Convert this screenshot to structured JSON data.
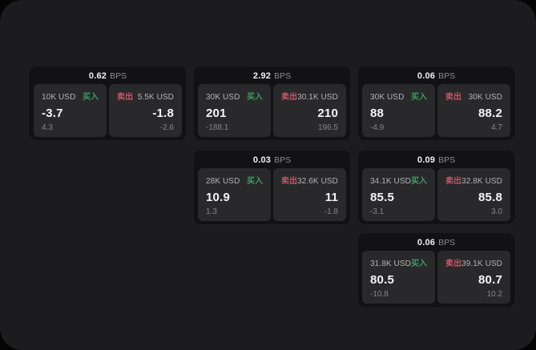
{
  "labels": {
    "bps": "BPS",
    "buy": "买入",
    "sell": "卖出"
  },
  "colors": {
    "buy_green": "#3d9c62",
    "sell_red": "#c65668",
    "window_bg": "#1c1c1e",
    "card_bg": "#121214",
    "panel_bg": "#29292b"
  },
  "cards": [
    {
      "col": 1,
      "row": 1,
      "bps": "0.62",
      "buy": {
        "amount": "10K USD",
        "price": "-3.7",
        "delta": "4.3"
      },
      "sell": {
        "amount": "5.5K USD",
        "price": "-1.8",
        "delta": "-2.6"
      }
    },
    {
      "col": 2,
      "row": 1,
      "bps": "2.92",
      "buy": {
        "amount": "30K USD",
        "price": "201",
        "delta": "-188.1"
      },
      "sell": {
        "amount": "30.1K USD",
        "price": "210",
        "delta": "196.5"
      }
    },
    {
      "col": 3,
      "row": 1,
      "bps": "0.06",
      "buy": {
        "amount": "30K USD",
        "price": "88",
        "delta": "-4.9"
      },
      "sell": {
        "amount": "30K USD",
        "price": "88.2",
        "delta": "4.7"
      }
    },
    {
      "col": 2,
      "row": 2,
      "bps": "0.03",
      "buy": {
        "amount": "28K USD",
        "price": "10.9",
        "delta": "1.3"
      },
      "sell": {
        "amount": "32.6K USD",
        "price": "11",
        "delta": "-1.8"
      }
    },
    {
      "col": 3,
      "row": 2,
      "bps": "0.09",
      "buy": {
        "amount": "34.1K USD",
        "price": "85.5",
        "delta": "-3.1"
      },
      "sell": {
        "amount": "32.8K USD",
        "price": "85.8",
        "delta": "3.0"
      }
    },
    {
      "col": 3,
      "row": 3,
      "bps": "0.06",
      "buy": {
        "amount": "31.8K USD",
        "price": "80.5",
        "delta": "-10.8"
      },
      "sell": {
        "amount": "39.1K USD",
        "price": "80.7",
        "delta": "10.2"
      }
    }
  ]
}
